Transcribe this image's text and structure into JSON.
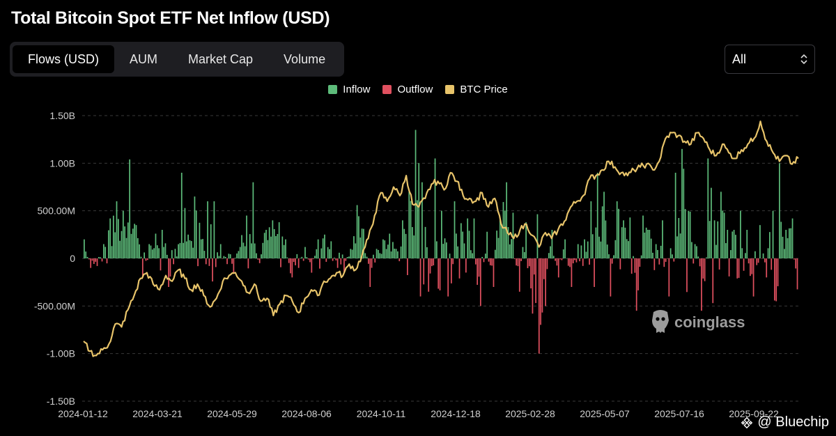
{
  "title": "Total Bitcoin Spot ETF Net Inflow (USD)",
  "tabs": [
    {
      "label": "Flows (USD)",
      "active": true
    },
    {
      "label": "AUM",
      "active": false
    },
    {
      "label": "Market Cap",
      "active": false
    },
    {
      "label": "Volume",
      "active": false
    }
  ],
  "range_select": {
    "value": "All"
  },
  "legend": [
    {
      "label": "Inflow",
      "color": "#5dbb7a"
    },
    {
      "label": "Outflow",
      "color": "#e0505f"
    },
    {
      "label": "BTC Price",
      "color": "#e8c46a"
    }
  ],
  "watermark": "coinglass",
  "credit": "@ Bluechip",
  "chart_data": {
    "type": "bar",
    "title": "Total Bitcoin Spot ETF Net Inflow (USD)",
    "y_ticks": [
      "1.50B",
      "1.00B",
      "500.00M",
      "0",
      "-500.00M",
      "-1.00B",
      "-1.50B"
    ],
    "ylim": [
      -1500000000,
      1500000000
    ],
    "x_ticks": [
      "2024-01-12",
      "2024-03-21",
      "2024-05-29",
      "2024-08-06",
      "2024-10-11",
      "2024-12-18",
      "2025-02-28",
      "2025-05-07",
      "2025-07-16",
      "2025-09-22"
    ],
    "grid": true,
    "legend_position": "top-center",
    "series": [
      {
        "name": "Flows",
        "kind": "bar",
        "units": "USD millions",
        "approx_values_every_5_trading_days": [
          200,
          -100,
          -80,
          150,
          420,
          600,
          500,
          1040,
          350,
          -200,
          150,
          260,
          300,
          -300,
          100,
          900,
          250,
          650,
          200,
          600,
          150,
          -60,
          -150,
          120,
          450,
          800,
          -50,
          300,
          400,
          380,
          200,
          -200,
          -100,
          120,
          -150,
          200,
          250,
          180,
          -100,
          -150,
          100,
          560,
          310,
          -300,
          100,
          200,
          260,
          100,
          400,
          700,
          1350,
          800,
          -350,
          1050,
          500,
          -400,
          600,
          370,
          420,
          -500,
          280,
          -300,
          400,
          800,
          480,
          -350,
          380,
          -580,
          -1000,
          -500,
          300,
          -200,
          200,
          -300,
          150,
          200,
          600,
          900,
          700,
          -400,
          600,
          400,
          430,
          -550,
          450,
          300,
          150,
          400,
          -400,
          900,
          1150,
          500,
          150,
          -550,
          1050,
          400,
          700,
          300,
          500,
          300,
          -400,
          350,
          -200,
          500,
          1000,
          300,
          420,
          -480
        ]
      },
      {
        "name": "BTC Price",
        "kind": "line",
        "units": "USD",
        "approx_values": [
          46000,
          42500,
          41000,
          43000,
          45000,
          52000,
          51000,
          57000,
          62000,
          68000,
          70000,
          66000,
          64000,
          69000,
          67000,
          71000,
          68000,
          64000,
          66000,
          62000,
          58000,
          61000,
          67000,
          69000,
          70000,
          67000,
          63000,
          66000,
          60000,
          61000,
          55000,
          59000,
          62000,
          60000,
          56000,
          61000,
          64000,
          62000,
          67000,
          68000,
          70000,
          69000,
          73000,
          71000,
          76000,
          82000,
          90000,
          98000,
          95000,
          100000,
          97000,
          104000,
          94000,
          93000,
          96000,
          101000,
          102000,
          99000,
          105000,
          102000,
          97000,
          96000,
          95000,
          98000,
          93000,
          96000,
          87000,
          84000,
          82000,
          85000,
          87000,
          83000,
          79000,
          84000,
          82000,
          85000,
          88000,
          93000,
          95000,
          97000,
          103000,
          104000,
          106000,
          109000,
          107000,
          105000,
          104000,
          106000,
          107000,
          108000,
          106000,
          109000,
          117000,
          119000,
          118000,
          116000,
          115000,
          119000,
          117000,
          113000,
          111000,
          115000,
          112000,
          110000,
          113000,
          115000,
          117000,
          123000,
          116000,
          112000,
          109000,
          111000,
          108000,
          110000
        ]
      }
    ]
  }
}
